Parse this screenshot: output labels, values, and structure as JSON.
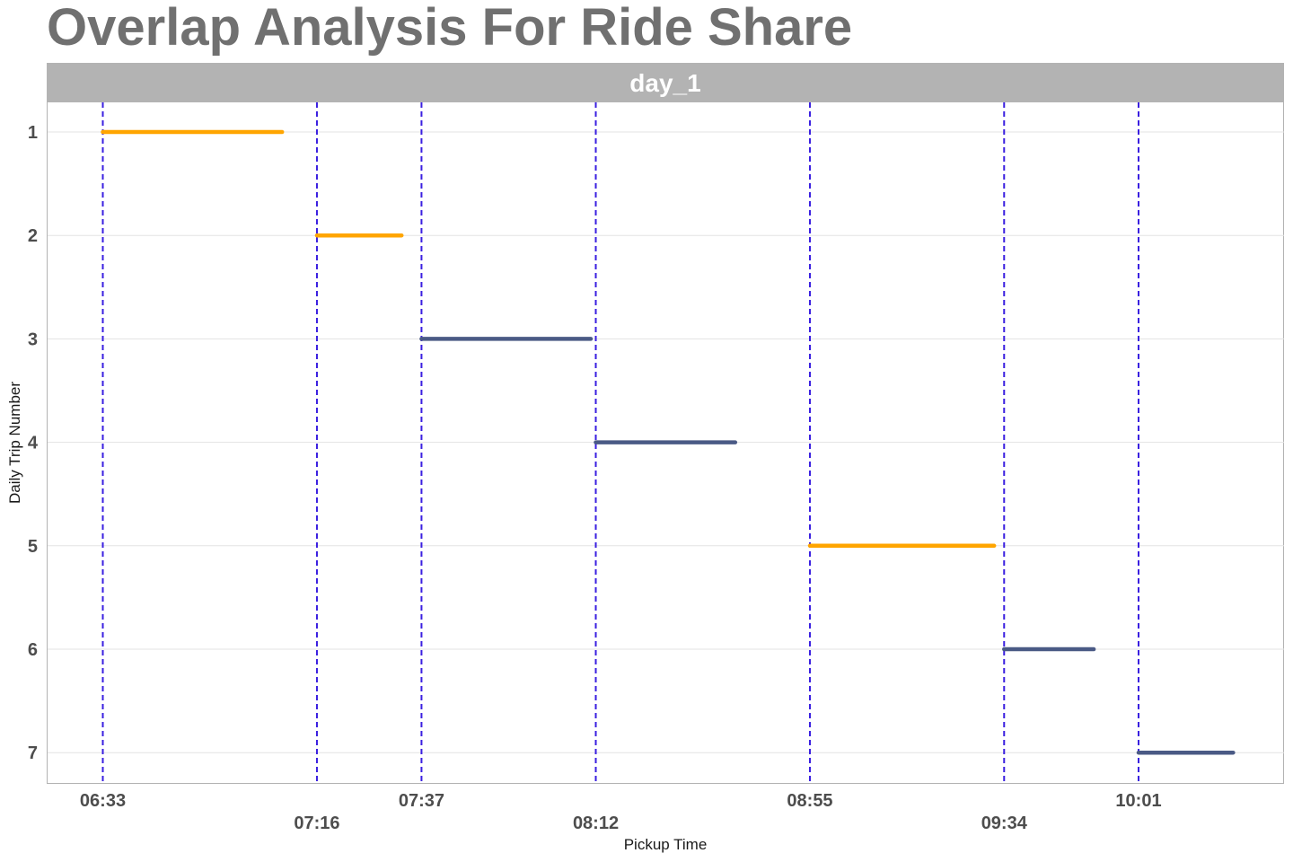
{
  "chart_data": {
    "type": "line",
    "title": "Overlap Analysis For Ride Share",
    "facet_label": "day_1",
    "xlabel": "Pickup Time",
    "ylabel": "Daily Trip Number",
    "x_tick_labels": [
      "06:33",
      "07:16",
      "07:37",
      "08:12",
      "08:55",
      "09:34",
      "10:01"
    ],
    "y_tick_labels": [
      "1",
      "2",
      "3",
      "4",
      "5",
      "6",
      "7"
    ],
    "y_reversed": true,
    "vlines": [
      "06:33",
      "07:16",
      "07:37",
      "08:12",
      "08:55",
      "09:34",
      "10:01"
    ],
    "vline_style": "dashed",
    "segments": [
      {
        "trip": 1,
        "start": "06:33",
        "end": "07:09",
        "color": "#FFA500"
      },
      {
        "trip": 2,
        "start": "07:16",
        "end": "07:33",
        "color": "#FFA500"
      },
      {
        "trip": 3,
        "start": "07:37",
        "end": "08:11",
        "color": "#4A5A85"
      },
      {
        "trip": 4,
        "start": "08:12",
        "end": "08:40",
        "color": "#4A5A85"
      },
      {
        "trip": 5,
        "start": "08:55",
        "end": "09:32",
        "color": "#FFA500"
      },
      {
        "trip": 6,
        "start": "09:34",
        "end": "09:52",
        "color": "#4A5A85"
      },
      {
        "trip": 7,
        "start": "10:01",
        "end": "10:20",
        "color": "#4A5A85"
      }
    ],
    "grid": true
  },
  "colors": {
    "title": "#707070",
    "facet_strip": "#B3B3B3",
    "vline": "#3A1FE0",
    "grid": "#E3E3E3",
    "panel_border": "#B3B3B3"
  }
}
